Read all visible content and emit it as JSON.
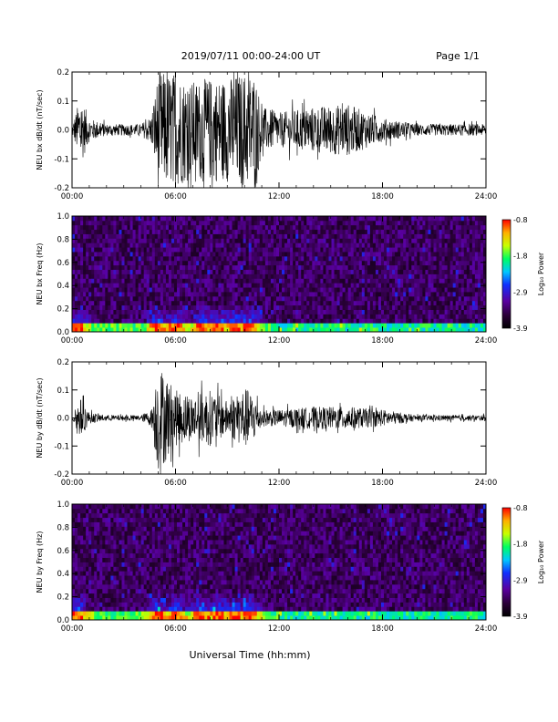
{
  "header": {
    "title": "2019/07/11  00:00-24:00 UT",
    "page": "Page 1/1"
  },
  "xlabel": "Universal Time (hh:mm)",
  "x_ticks": [
    "00:00",
    "06:00",
    "12:00",
    "18:00",
    "24:00"
  ],
  "colors": {
    "trace": "#000000",
    "background": "#ffffff"
  },
  "chart_data": [
    {
      "type": "line",
      "id": "bx-dbdt",
      "ylabel": "NEU bx dB/dt (nT/sec)",
      "xlim": [
        0,
        24
      ],
      "ylim": [
        -0.2,
        0.2
      ],
      "y_ticks": [
        "0.2",
        "0.1",
        "0.0",
        "-0.1",
        "-0.2"
      ],
      "y_tick_values": [
        0.2,
        0.1,
        0.0,
        -0.1,
        -0.2
      ],
      "series": [
        {
          "x_hours": [
            0,
            0.5,
            1.0,
            2.0,
            3.0,
            4.0,
            4.6,
            5.0,
            6.0,
            7.0,
            8.0,
            9.0,
            10.0,
            10.6,
            11.0,
            12.0,
            14.0,
            16.0,
            18.0,
            20.0,
            22.0,
            24.0
          ],
          "envelope": [
            0.015,
            0.12,
            0.04,
            0.02,
            0.02,
            0.02,
            0.05,
            0.2,
            0.2,
            0.17,
            0.18,
            0.18,
            0.2,
            0.2,
            0.08,
            0.06,
            0.08,
            0.09,
            0.04,
            0.02,
            0.02,
            0.02
          ]
        }
      ]
    },
    {
      "type": "heatmap",
      "id": "bx-freq",
      "ylabel": "NEU bx Freq (Hz)",
      "xlim": [
        0,
        24
      ],
      "ylim": [
        0.0,
        1.0
      ],
      "y_ticks": [
        "1.0",
        "0.8",
        "0.6",
        "0.4",
        "0.2",
        "0.0"
      ],
      "colorbar": {
        "label": "Log₁₀ Power",
        "ticks": [
          "-0.8",
          "-1.8",
          "-2.9",
          "-3.9"
        ],
        "range": [
          -3.9,
          -0.8
        ]
      },
      "activity_hours": [
        0.3,
        5.0,
        6.0,
        7.5,
        8.5,
        9.5,
        10.3
      ]
    },
    {
      "type": "line",
      "id": "by-dbdt",
      "ylabel": "NEU by dB/dt (nT/sec)",
      "xlim": [
        0,
        24
      ],
      "ylim": [
        -0.2,
        0.2
      ],
      "y_ticks": [
        "0.2",
        "0.1",
        "0.0",
        "-0.1",
        "-0.2"
      ],
      "y_tick_values": [
        0.2,
        0.1,
        0.0,
        -0.1,
        -0.2
      ],
      "series": [
        {
          "x_hours": [
            0,
            0.5,
            1.0,
            2.0,
            3.0,
            4.0,
            4.6,
            5.0,
            6.0,
            7.0,
            8.0,
            9.0,
            10.0,
            10.6,
            11.0,
            12.0,
            14.0,
            16.0,
            18.0,
            20.0,
            22.0,
            24.0
          ],
          "envelope": [
            0.01,
            0.07,
            0.02,
            0.01,
            0.01,
            0.01,
            0.03,
            0.2,
            0.1,
            0.08,
            0.1,
            0.06,
            0.11,
            0.08,
            0.03,
            0.03,
            0.04,
            0.04,
            0.03,
            0.01,
            0.01,
            0.01
          ]
        }
      ]
    },
    {
      "type": "heatmap",
      "id": "by-freq",
      "ylabel": "NEU by Freq (Hz)",
      "xlim": [
        0,
        24
      ],
      "ylim": [
        0.0,
        1.0
      ],
      "y_ticks": [
        "1.0",
        "0.8",
        "0.6",
        "0.4",
        "0.2",
        "0.0"
      ],
      "colorbar": {
        "label": "Log₁₀ Power",
        "ticks": [
          "-0.8",
          "-1.8",
          "-2.9",
          "-3.9"
        ],
        "range": [
          -3.9,
          -0.8
        ]
      },
      "activity_hours": [
        0.3,
        5.0,
        6.0,
        7.5,
        8.5,
        9.5,
        10.3
      ]
    }
  ]
}
